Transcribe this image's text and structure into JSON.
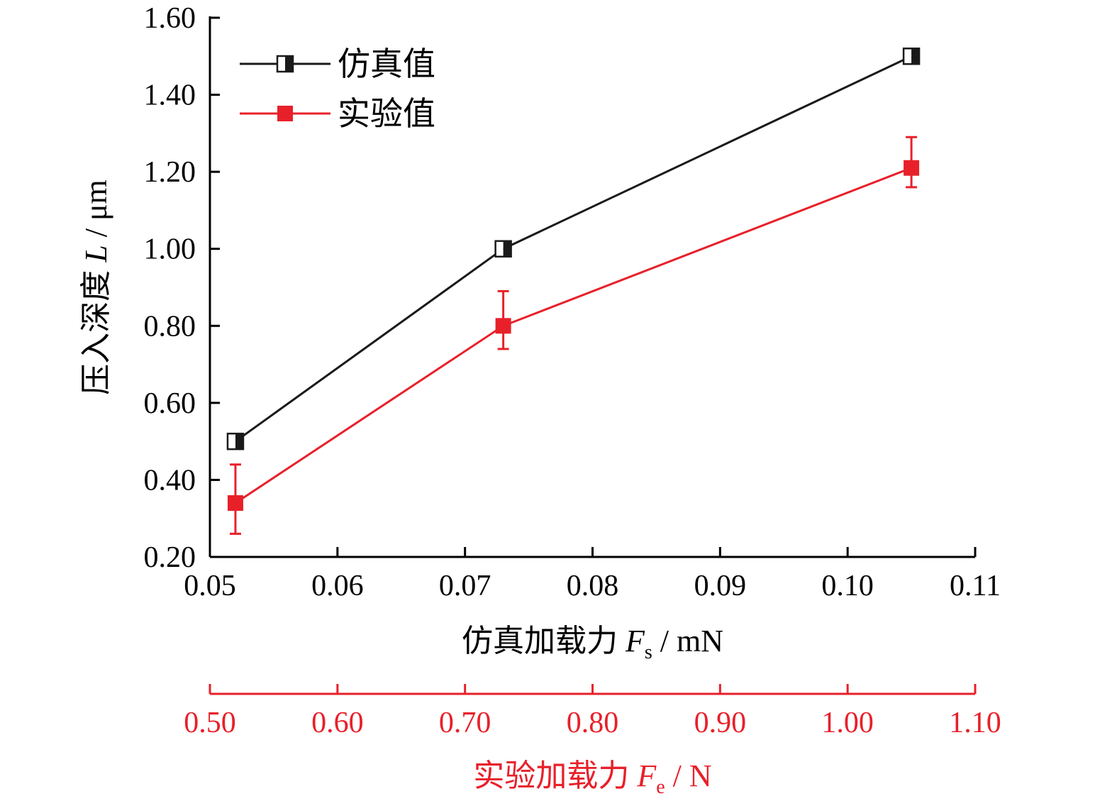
{
  "colors": {
    "axis": "#000000",
    "sim": "#1a1a1a",
    "exp": "#e8202a",
    "secondary_axis": "#e8202a"
  },
  "chart_data": {
    "type": "line",
    "x_primary": {
      "label_prefix": "仿真加载力 ",
      "label_var": "F",
      "label_sub": "s",
      "label_suffix": " / mN",
      "range": [
        0.05,
        0.11
      ],
      "ticks": [
        0.05,
        0.06,
        0.07,
        0.08,
        0.09,
        0.1,
        0.11
      ],
      "tick_labels": [
        "0.05",
        "0.06",
        "0.07",
        "0.08",
        "0.09",
        "0.10",
        "0.11"
      ]
    },
    "x_secondary": {
      "label_prefix": "实验加载力 ",
      "label_var": "F",
      "label_sub": "e",
      "label_suffix": " / N",
      "range": [
        0.5,
        1.1
      ],
      "ticks": [
        0.5,
        0.6,
        0.7,
        0.8,
        0.9,
        1.0,
        1.1
      ],
      "tick_labels": [
        "0.50",
        "0.60",
        "0.70",
        "0.80",
        "0.90",
        "1.00",
        "1.10"
      ]
    },
    "y": {
      "label_prefix": "压入深度 ",
      "label_var": "L",
      "label_suffix": " / μm",
      "range": [
        0.2,
        1.6
      ],
      "ticks": [
        0.2,
        0.4,
        0.6,
        0.8,
        1.0,
        1.2,
        1.4,
        1.6
      ],
      "tick_labels": [
        "0.20",
        "0.40",
        "0.60",
        "0.80",
        "1.00",
        "1.20",
        "1.40",
        "1.60"
      ]
    },
    "legend_position": "top-left",
    "series": [
      {
        "name": "仿真值",
        "color": "#1a1a1a",
        "marker": "half-filled-square",
        "x": [
          0.052,
          0.073,
          0.105
        ],
        "y": [
          0.5,
          1.0,
          1.5
        ]
      },
      {
        "name": "实验值",
        "color": "#e8202a",
        "marker": "filled-square",
        "x": [
          0.052,
          0.073,
          0.105
        ],
        "y": [
          0.34,
          0.8,
          1.21
        ],
        "err_low": [
          0.26,
          0.74,
          1.16
        ],
        "err_high": [
          0.44,
          0.89,
          1.29
        ]
      }
    ]
  }
}
